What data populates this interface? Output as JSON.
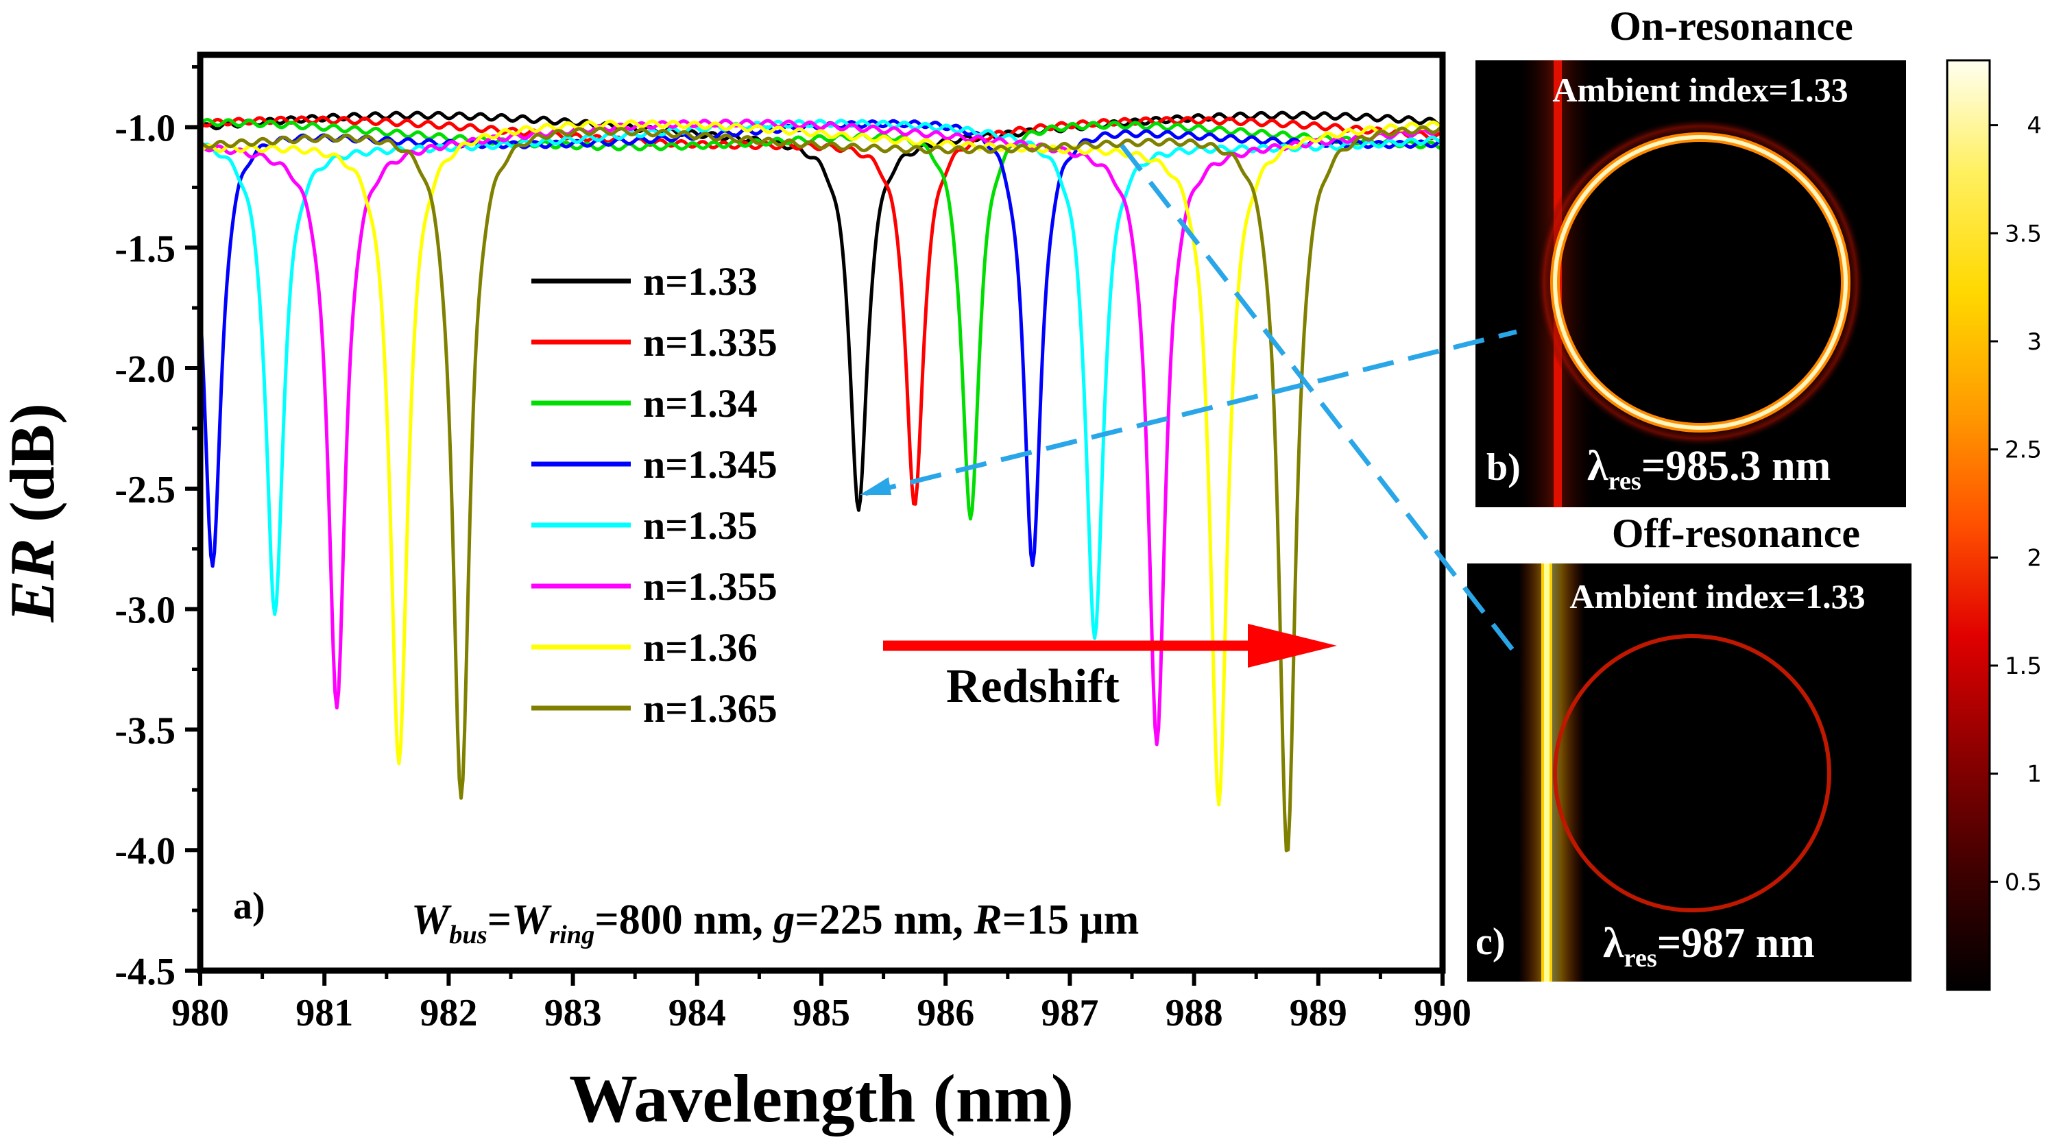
{
  "chart_data": [
    {
      "panel": "a)",
      "type": "line",
      "xlabel": "Wavelength (nm)",
      "ylabel_italic": "ER",
      "ylabel_rest": " (dB)",
      "xlim": [
        980,
        990
      ],
      "ylim": [
        -4.5,
        -0.7
      ],
      "x_ticks": [
        980,
        981,
        982,
        983,
        984,
        985,
        986,
        987,
        988,
        989,
        990
      ],
      "y_ticks": [
        -1.0,
        -1.5,
        -2.0,
        -2.5,
        -3.0,
        -3.5,
        -4.0,
        -4.5
      ],
      "y_tick_labels": [
        "-1.0",
        "-1.5",
        "-2.0",
        "-2.5",
        "-3.0",
        "-3.5",
        "-4.0",
        "-4.5"
      ],
      "series": [
        {
          "name": "n=1.33",
          "color": "#000000",
          "dips": [
            {
              "x": 985.3,
              "depth": -2.55
            }
          ],
          "baseline": -1.0
        },
        {
          "name": "n=1.335",
          "color": "#ff0000",
          "dips": [
            {
              "x": 985.75,
              "depth": -2.57
            }
          ],
          "baseline": -1.02
        },
        {
          "name": "n=1.34",
          "color": "#00dd00",
          "dips": [
            {
              "x": 986.2,
              "depth": -2.67
            }
          ],
          "baseline": -1.03
        },
        {
          "name": "n=1.345",
          "color": "#0000ff",
          "dips": [
            {
              "x": 980.1,
              "depth": -2.85
            },
            {
              "x": 986.7,
              "depth": -2.85
            }
          ],
          "baseline": -1.02
        },
        {
          "name": "n=1.35",
          "color": "#00ffff",
          "dips": [
            {
              "x": 980.6,
              "depth": -3.0
            },
            {
              "x": 987.2,
              "depth": -3.12
            }
          ],
          "baseline": -1.03
        },
        {
          "name": "n=1.355",
          "color": "#ff00ff",
          "dips": [
            {
              "x": 981.1,
              "depth": -3.35
            },
            {
              "x": 987.7,
              "depth": -3.5
            }
          ],
          "baseline": -1.03
        },
        {
          "name": "n=1.36",
          "color": "#ffff00",
          "dips": [
            {
              "x": 981.6,
              "depth": -3.65
            },
            {
              "x": 988.2,
              "depth": -3.8
            }
          ],
          "baseline": -1.03
        },
        {
          "name": "n=1.365",
          "color": "#808000",
          "dips": [
            {
              "x": 982.1,
              "depth": -3.82
            },
            {
              "x": 988.75,
              "depth": -4.05
            }
          ],
          "baseline": -1.04
        }
      ],
      "annotation_arrow": "Redshift",
      "params": {
        "w1": "W",
        "w1_sub": "bus",
        "eq1": "=",
        "w2": "W",
        "w2_sub": "ring",
        "rest1": "=800 nm, ",
        "g": "g",
        "rest2": "=225 nm, ",
        "r": "R",
        "rest3": "=15 μm"
      }
    },
    {
      "panel": "b)",
      "type": "heatmap",
      "title": "On-resonance",
      "ambient": "Ambient index=1.33",
      "lambda": "λ",
      "lambda_sub": "res",
      "lambda_value": "=985.3 nm"
    },
    {
      "panel": "c)",
      "type": "heatmap",
      "title": "Off-resonance",
      "ambient": "Ambient index=1.33",
      "lambda": "λ",
      "lambda_sub": "res",
      "lambda_value": "=987 nm"
    },
    {
      "type": "colorbar",
      "range": [
        0,
        4.3
      ],
      "ticks": [
        0.5,
        1,
        1.5,
        2,
        2.5,
        3,
        3.5,
        4
      ],
      "tick_labels": [
        "0.5",
        "1",
        "1.5",
        "2",
        "2.5",
        "3",
        "3.5",
        "4"
      ]
    }
  ]
}
